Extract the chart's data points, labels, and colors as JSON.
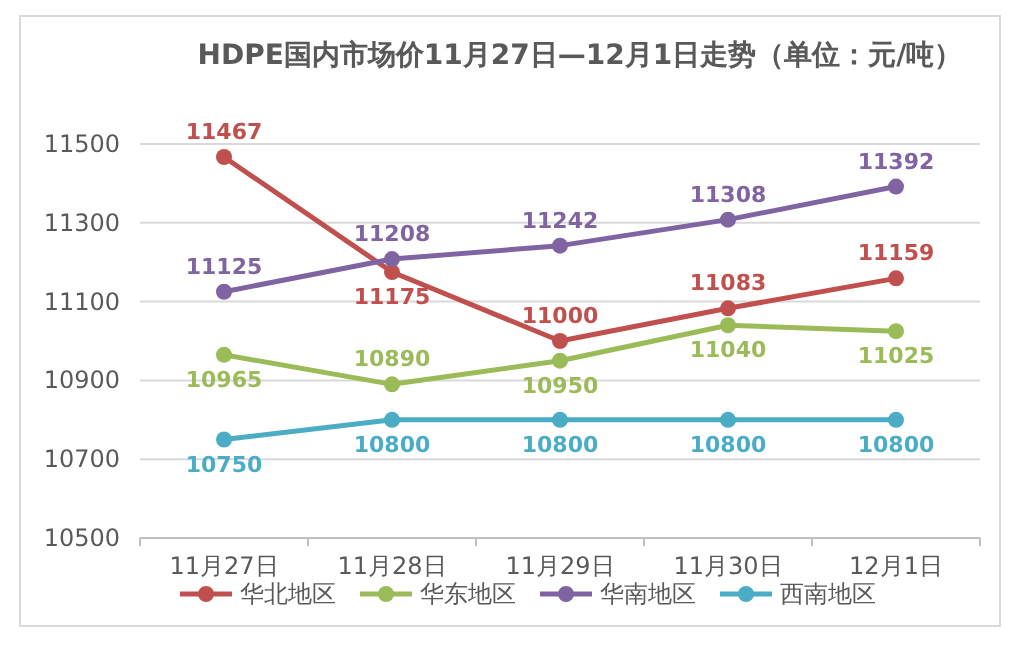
{
  "chart_data": {
    "type": "line",
    "title": "HDPE国内市场价11月27日—12月1日走势（单位：元/吨）",
    "categories": [
      "11月27日",
      "11月28日",
      "11月29日",
      "11月30日",
      "12月1日"
    ],
    "series": [
      {
        "name": "华北地区",
        "color": "#c0504d",
        "values": [
          11467,
          11175,
          11000,
          11083,
          11159
        ]
      },
      {
        "name": "华东地区",
        "color": "#9bbb59",
        "values": [
          10965,
          10890,
          10950,
          11040,
          11025
        ]
      },
      {
        "name": "华南地区",
        "color": "#8064a2",
        "values": [
          11125,
          11208,
          11242,
          11308,
          11392
        ]
      },
      {
        "name": "西南地区",
        "color": "#4bacc6",
        "values": [
          10750,
          10800,
          10800,
          10800,
          10800
        ]
      }
    ],
    "ylim": [
      10500,
      11500
    ],
    "yticks": [
      10500,
      10700,
      10900,
      11100,
      11300,
      11500
    ],
    "grid": "y",
    "legend": "bottom",
    "marker": "circle",
    "data_labels": true
  }
}
